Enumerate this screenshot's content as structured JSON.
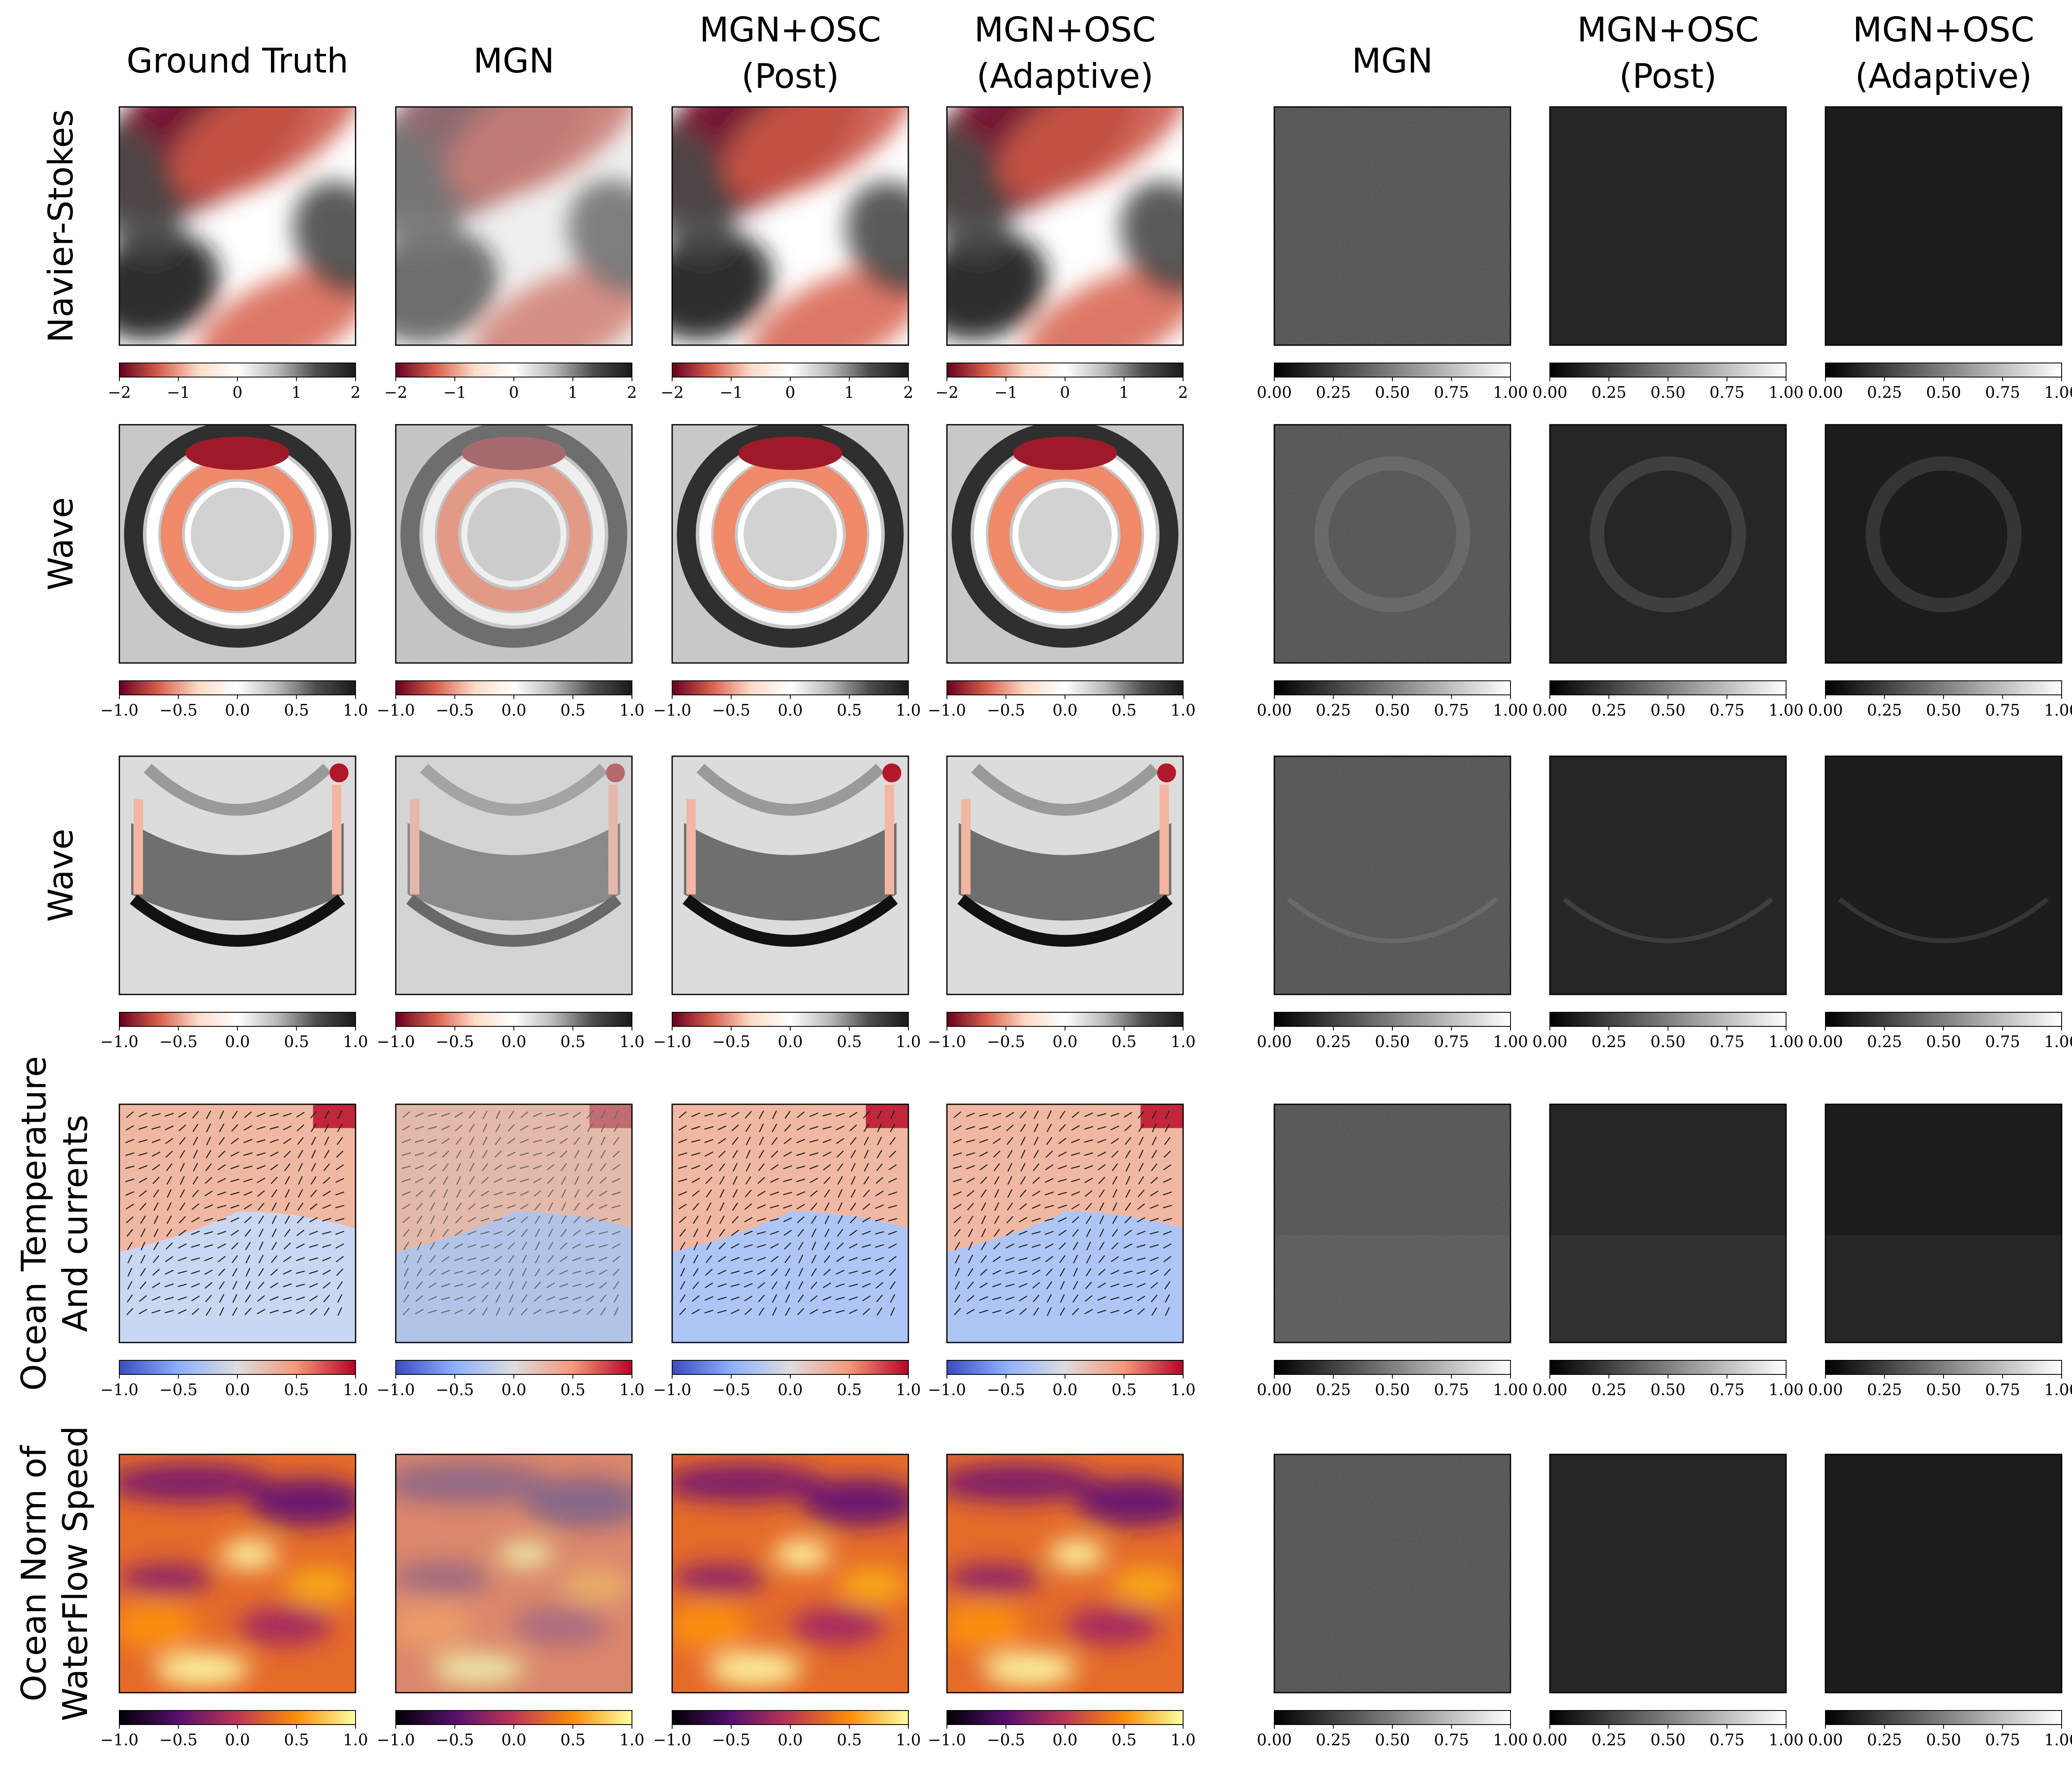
{
  "columns": [
    {
      "line1": "Ground Truth",
      "line2": ""
    },
    {
      "line1": "MGN",
      "line2": ""
    },
    {
      "line1": "MGN+OSC",
      "line2": "(Post)"
    },
    {
      "line1": "MGN+OSC",
      "line2": "(Adaptive)"
    },
    {
      "line1": "MGN",
      "line2": ""
    },
    {
      "line1": "MGN+OSC",
      "line2": "(Post)"
    },
    {
      "line1": "MGN+OSC",
      "line2": "(Adaptive)"
    }
  ],
  "rows": [
    {
      "line1": "Navier-Stokes",
      "line2": "",
      "field": "navier",
      "colormap": "RdGy",
      "ticks": [
        "−2",
        "−1",
        "0",
        "1",
        "2"
      ]
    },
    {
      "line1": "Wave",
      "line2": "",
      "field": "wave1",
      "colormap": "RdGy",
      "ticks": [
        "−1.0",
        "−0.5",
        "0.0",
        "0.5",
        "1.0"
      ]
    },
    {
      "line1": "Wave",
      "line2": "",
      "field": "wave2",
      "colormap": "RdGy",
      "ticks": [
        "−1.0",
        "−0.5",
        "0.0",
        "0.5",
        "1.0"
      ]
    },
    {
      "line1": "Ocean Temperature",
      "line2": "And currents",
      "field": "ocean_temp",
      "colormap": "coolwarm",
      "ticks": [
        "−1.0",
        "−0.5",
        "0.0",
        "0.5",
        "1.0"
      ]
    },
    {
      "line1": "Ocean Norm of",
      "line2": "WaterFlow Speed",
      "field": "ocean_speed",
      "colormap": "inferno",
      "ticks": [
        "−1.0",
        "−0.5",
        "0.0",
        "0.5",
        "1.0"
      ]
    }
  ],
  "error_colorbar": {
    "colormap": "gray",
    "ticks": [
      "0.00",
      "0.25",
      "0.50",
      "0.75",
      "1.00"
    ]
  },
  "colormaps": {
    "RdGy": [
      "#67001f",
      "#d6604d",
      "#fddbc7",
      "#ffffff",
      "#bababa",
      "#4d4d4d",
      "#1a1a1a"
    ],
    "coolwarm": [
      "#3b4cc0",
      "#8db0fe",
      "#dddddd",
      "#f4987a",
      "#b40426"
    ],
    "inferno": [
      "#000004",
      "#56106e",
      "#bb3754",
      "#f98e09",
      "#fcffa4"
    ],
    "gray": [
      "#000000",
      "#ffffff"
    ]
  }
}
